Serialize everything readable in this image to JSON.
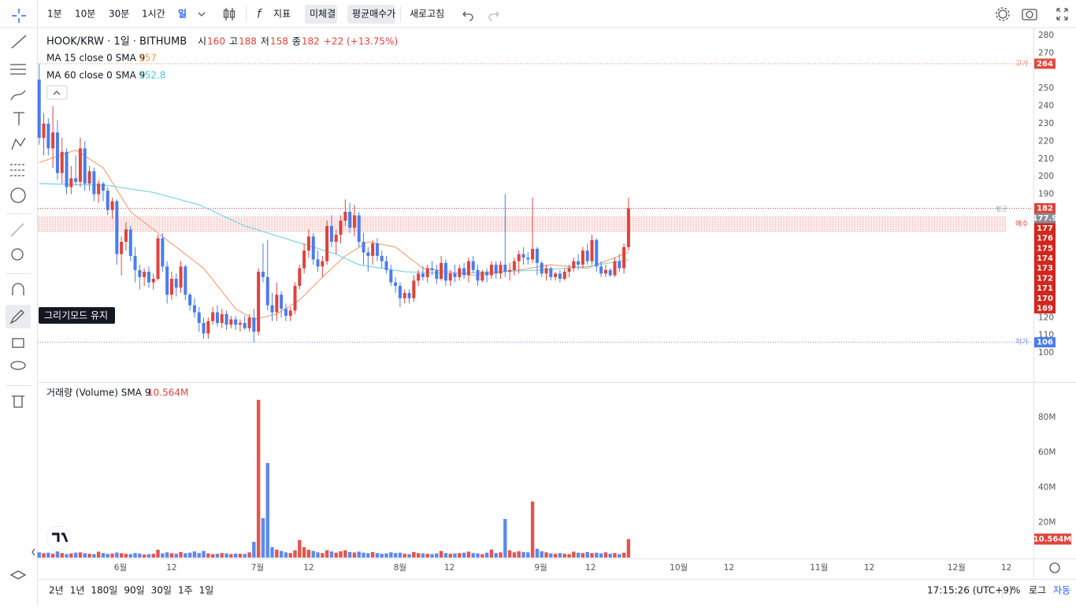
{
  "toolbar": {
    "intervals": [
      "1분",
      "10분",
      "30분",
      "1시간",
      "일"
    ],
    "indicator": "지표",
    "buttons": [
      "미체결",
      "평균매수가"
    ],
    "refresh": "새로고침"
  },
  "sidebar": {
    "tooltip": "그리기모드 유지"
  },
  "chart_data": {
    "type": "candlestick",
    "title": "HOOK/KRW · 1일 · BITHUMB",
    "ohlc_labels": [
      "시",
      "고",
      "저",
      "종"
    ],
    "change": "+22 (+13.75%)",
    "up_color": "#e0433a",
    "down_color": "#4a7cf0",
    "candles": [
      [
        255,
        264,
        218,
        222
      ],
      [
        222,
        236,
        212,
        230
      ],
      [
        230,
        233,
        212,
        216
      ],
      [
        216,
        240,
        205,
        225
      ],
      [
        225,
        232,
        198,
        202
      ],
      [
        202,
        222,
        196,
        214
      ],
      [
        214,
        216,
        190,
        194
      ],
      [
        194,
        206,
        190,
        199
      ],
      [
        199,
        212,
        195,
        197
      ],
      [
        197,
        222,
        194,
        216
      ],
      [
        216,
        220,
        192,
        196
      ],
      [
        196,
        206,
        192,
        203
      ],
      [
        203,
        205,
        186,
        190
      ],
      [
        190,
        198,
        185,
        196
      ],
      [
        196,
        197,
        186,
        192
      ],
      [
        192,
        194,
        178,
        181
      ],
      [
        181,
        188,
        176,
        186
      ],
      [
        186,
        187,
        150,
        156
      ],
      [
        156,
        166,
        144,
        163
      ],
      [
        163,
        174,
        158,
        170
      ],
      [
        170,
        172,
        152,
        155
      ],
      [
        155,
        160,
        140,
        147
      ],
      [
        147,
        150,
        136,
        143
      ],
      [
        143,
        148,
        138,
        146
      ],
      [
        146,
        149,
        137,
        140
      ],
      [
        140,
        145,
        136,
        142
      ],
      [
        142,
        167,
        141,
        165
      ],
      [
        165,
        168,
        146,
        149
      ],
      [
        149,
        152,
        128,
        133
      ],
      [
        133,
        146,
        130,
        142
      ],
      [
        142,
        145,
        132,
        137
      ],
      [
        137,
        152,
        134,
        149
      ],
      [
        149,
        150,
        130,
        133
      ],
      [
        133,
        134,
        124,
        127
      ],
      [
        127,
        131,
        120,
        123
      ],
      [
        123,
        126,
        112,
        117
      ],
      [
        117,
        120,
        108,
        111
      ],
      [
        111,
        120,
        108,
        118
      ],
      [
        118,
        126,
        116,
        123
      ],
      [
        123,
        127,
        115,
        117
      ],
      [
        117,
        125,
        114,
        122
      ],
      [
        122,
        124,
        113,
        116
      ],
      [
        116,
        121,
        114,
        119
      ],
      [
        119,
        121,
        113,
        116
      ],
      [
        116,
        119,
        112,
        117
      ],
      [
        117,
        121,
        113,
        114
      ],
      [
        114,
        122,
        112,
        120
      ],
      [
        120,
        125,
        106,
        112
      ],
      [
        112,
        148,
        110,
        146
      ],
      [
        146,
        162,
        140,
        143
      ],
      [
        143,
        164,
        124,
        127
      ],
      [
        127,
        134,
        118,
        123
      ],
      [
        123,
        140,
        118,
        133
      ],
      [
        133,
        135,
        120,
        125
      ],
      [
        125,
        128,
        118,
        121
      ],
      [
        121,
        126,
        118,
        124
      ],
      [
        124,
        140,
        122,
        138
      ],
      [
        138,
        150,
        136,
        148
      ],
      [
        148,
        162,
        145,
        158
      ],
      [
        158,
        170,
        154,
        166
      ],
      [
        166,
        168,
        150,
        153
      ],
      [
        153,
        158,
        146,
        149
      ],
      [
        149,
        155,
        143,
        152
      ],
      [
        152,
        175,
        150,
        172
      ],
      [
        172,
        178,
        160,
        163
      ],
      [
        163,
        170,
        156,
        167
      ],
      [
        167,
        178,
        162,
        175
      ],
      [
        175,
        187,
        172,
        180
      ],
      [
        180,
        185,
        168,
        171
      ],
      [
        171,
        184,
        166,
        178
      ],
      [
        178,
        180,
        160,
        163
      ],
      [
        163,
        168,
        150,
        157
      ],
      [
        157,
        160,
        146,
        155
      ],
      [
        155,
        164,
        150,
        162
      ],
      [
        162,
        165,
        152,
        155
      ],
      [
        155,
        158,
        148,
        152
      ],
      [
        152,
        155,
        145,
        147
      ],
      [
        147,
        150,
        138,
        140
      ],
      [
        140,
        143,
        134,
        138
      ],
      [
        138,
        140,
        126,
        131
      ],
      [
        131,
        136,
        128,
        134
      ],
      [
        134,
        136,
        128,
        131
      ],
      [
        131,
        144,
        129,
        141
      ],
      [
        141,
        147,
        138,
        145
      ],
      [
        145,
        149,
        141,
        143
      ],
      [
        143,
        150,
        140,
        148
      ],
      [
        148,
        152,
        144,
        147
      ],
      [
        147,
        150,
        139,
        142
      ],
      [
        142,
        155,
        141,
        151
      ],
      [
        151,
        153,
        138,
        141
      ],
      [
        141,
        147,
        138,
        145
      ],
      [
        145,
        150,
        140,
        143
      ],
      [
        143,
        150,
        141,
        148
      ],
      [
        148,
        151,
        142,
        144
      ],
      [
        144,
        154,
        140,
        152
      ],
      [
        152,
        155,
        145,
        147
      ],
      [
        147,
        150,
        138,
        141
      ],
      [
        141,
        147,
        140,
        146
      ],
      [
        146,
        148,
        140,
        144
      ],
      [
        144,
        152,
        142,
        150
      ],
      [
        150,
        152,
        142,
        145
      ],
      [
        145,
        152,
        142,
        150
      ],
      [
        150,
        190,
        143,
        146
      ],
      [
        146,
        151,
        141,
        147
      ],
      [
        147,
        154,
        144,
        152
      ],
      [
        152,
        158,
        145,
        156
      ],
      [
        156,
        160,
        150,
        154
      ],
      [
        154,
        157,
        150,
        153
      ],
      [
        153,
        188,
        151,
        159
      ],
      [
        159,
        160,
        144,
        151
      ],
      [
        151,
        152,
        143,
        145
      ],
      [
        145,
        150,
        141,
        148
      ],
      [
        148,
        149,
        141,
        143
      ],
      [
        143,
        146,
        141,
        145
      ],
      [
        145,
        147,
        140,
        142
      ],
      [
        142,
        148,
        141,
        146
      ],
      [
        146,
        150,
        143,
        148
      ],
      [
        148,
        154,
        146,
        152
      ],
      [
        152,
        156,
        147,
        150
      ],
      [
        150,
        160,
        148,
        158
      ],
      [
        158,
        162,
        150,
        152
      ],
      [
        152,
        167,
        150,
        164
      ],
      [
        164,
        165,
        146,
        149
      ],
      [
        149,
        152,
        143,
        145
      ],
      [
        145,
        150,
        143,
        147
      ],
      [
        147,
        148,
        143,
        144
      ],
      [
        144,
        154,
        143,
        152
      ],
      [
        152,
        156,
        146,
        148
      ],
      [
        148,
        162,
        145,
        160
      ],
      [
        160,
        188,
        158,
        182
      ]
    ],
    "ma": [
      {
        "name": "MA 15 close 0 SMA 9",
        "color": "#f4a47c",
        "x": [
          0,
          8,
          14,
          20,
          30,
          36,
          43,
          47,
          52,
          57,
          62,
          67,
          72,
          78,
          84,
          95,
          105,
          112,
          120,
          129
        ],
        "values": [
          208,
          215,
          205,
          180,
          160,
          148,
          125,
          119,
          122,
          130,
          143,
          155,
          163,
          160,
          148,
          144,
          147,
          150,
          148,
          157
        ]
      },
      {
        "name": "MA 60 close 0 SMA 9",
        "color": "#79d4e3",
        "x": [
          0,
          15,
          25,
          35,
          45,
          55,
          65,
          70,
          80,
          90,
          100,
          110,
          120,
          129
        ],
        "values": [
          196,
          195,
          191,
          184,
          172,
          164,
          156,
          150,
          146,
          145,
          146,
          147,
          149,
          152.8
        ]
      }
    ],
    "xlim": [
      -0.3,
      217.3
    ],
    "xticks": [
      {
        "value": 17.8,
        "label": "6월"
      },
      {
        "value": 29,
        "label": "12"
      },
      {
        "value": 47.8,
        "label": "7월"
      },
      {
        "value": 59,
        "label": "12"
      },
      {
        "value": 79,
        "label": "8월"
      },
      {
        "value": 89.8,
        "label": "12"
      },
      {
        "value": 109.8,
        "label": "9월"
      },
      {
        "value": 120.7,
        "label": "12"
      },
      {
        "value": 140,
        "label": "10월"
      },
      {
        "value": 151,
        "label": "12"
      },
      {
        "value": 170.7,
        "label": "11월"
      },
      {
        "value": 181.7,
        "label": "12"
      },
      {
        "value": 200.8,
        "label": "12월"
      },
      {
        "value": 211.7,
        "label": "12"
      }
    ],
    "ylim": [
      83.5,
      284.5
    ],
    "yticks": [
      100,
      110,
      120,
      190,
      200,
      210,
      220,
      230,
      240,
      250,
      270,
      280
    ],
    "high_label": "고가",
    "low_label": "저가",
    "avg_label": "평균",
    "avg_price": 177.9,
    "buy_label": "매수",
    "buy_orders": [
      177,
      176,
      175,
      174,
      173,
      172,
      171,
      170,
      169
    ],
    "volume": {
      "title": "거래량 (Volume) SMA 9",
      "last_label": "10.564M",
      "ylim": [
        0,
        99.3
      ],
      "yticks": [
        {
          "value": 20,
          "label": "20M"
        },
        {
          "value": 40,
          "label": "40M"
        },
        {
          "value": 60,
          "label": "60M"
        },
        {
          "value": 80,
          "label": "80M"
        }
      ],
      "values": [
        3,
        2.5,
        2.8,
        2.2,
        3.5,
        2.6,
        2,
        2.4,
        2.8,
        3,
        2.5,
        2.2,
        2,
        3.4,
        2.6,
        2.1,
        2.3,
        2.9,
        2.5,
        2.2,
        2,
        2.6,
        2.3,
        1.8,
        2,
        2.2,
        4.5,
        2.4,
        3,
        2.5,
        2.2,
        3.2,
        2.5,
        2.8,
        3.5,
        2.6,
        3.8,
        2.4,
        2,
        2.2,
        2.6,
        2.4,
        2,
        2.3,
        2.2,
        2.1,
        3,
        9,
        90,
        22.5,
        54,
        6,
        4.5,
        3.8,
        3,
        2.6,
        4.2,
        10,
        6,
        4.5,
        3.8,
        3,
        2.6,
        4.2,
        3.5,
        2.8,
        3.6,
        4.2,
        3.2,
        2.9,
        3.4,
        2.8,
        2.5,
        3.2,
        2.6,
        2.2,
        2.4,
        3,
        2.6,
        2.8,
        2.2,
        2,
        3.2,
        2.6,
        2.4,
        2.2,
        2,
        2.4,
        3.8,
        2.6,
        2.2,
        2.4,
        2.6,
        2.8,
        3.4,
        2.6,
        2.4,
        2,
        2.8,
        4.6,
        2.6,
        3,
        22,
        4.2,
        3,
        3.6,
        3.2,
        3,
        32,
        5,
        3.6,
        3,
        2.4,
        2.2,
        2.6,
        2.2,
        2,
        3.4,
        2.8,
        2.6,
        3.2,
        2.6,
        2.8,
        2.4,
        3,
        2.2,
        2.6,
        2,
        2.8,
        10.564
      ]
    }
  },
  "footer": {
    "ranges": [
      "2년",
      "1년",
      "180일",
      "90일",
      "30일",
      "1주",
      "1일"
    ],
    "time": "17:15:26 (UTC+9)",
    "options": [
      "%",
      "로그",
      "자동"
    ]
  }
}
